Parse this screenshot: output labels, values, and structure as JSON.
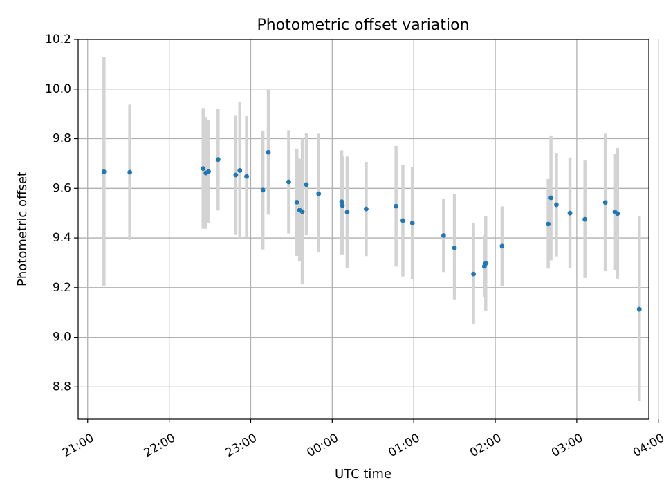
{
  "chart_data": {
    "type": "scatter",
    "title": "Photometric offset variation",
    "xlabel": "UTC time",
    "ylabel": "Photometric offset",
    "grid": true,
    "x_unit": "minutes since 21:00 UTC",
    "xlim": [
      -7,
      413
    ],
    "ylim": [
      8.67,
      10.2
    ],
    "x_ticks": [
      {
        "value": 0,
        "label": "21:00"
      },
      {
        "value": 60,
        "label": "22:00"
      },
      {
        "value": 120,
        "label": "23:00"
      },
      {
        "value": 180,
        "label": "00:00"
      },
      {
        "value": 240,
        "label": "01:00"
      },
      {
        "value": 300,
        "label": "02:00"
      },
      {
        "value": 360,
        "label": "03:00"
      },
      {
        "value": 420,
        "label": "04:00"
      }
    ],
    "y_ticks": [
      {
        "value": 8.8,
        "label": "8.8"
      },
      {
        "value": 9.0,
        "label": "9.0"
      },
      {
        "value": 9.2,
        "label": "9.2"
      },
      {
        "value": 9.4,
        "label": "9.4"
      },
      {
        "value": 9.6,
        "label": "9.6"
      },
      {
        "value": 9.8,
        "label": "9.8"
      },
      {
        "value": 10.0,
        "label": "10.0"
      },
      {
        "value": 10.2,
        "label": "10.2"
      }
    ],
    "marker_color": "#1f77b4",
    "errorbar_color": "#d3d3d3",
    "points": [
      {
        "x": 12,
        "y": 9.667,
        "lo": 9.205,
        "hi": 10.13
      },
      {
        "x": 31,
        "y": 9.665,
        "lo": 9.393,
        "hi": 9.937
      },
      {
        "x": 85,
        "y": 9.68,
        "lo": 9.437,
        "hi": 9.923
      },
      {
        "x": 87,
        "y": 9.662,
        "lo": 9.437,
        "hi": 9.887
      },
      {
        "x": 89,
        "y": 9.668,
        "lo": 9.46,
        "hi": 9.876
      },
      {
        "x": 96,
        "y": 9.716,
        "lo": 9.511,
        "hi": 9.921
      },
      {
        "x": 109,
        "y": 9.654,
        "lo": 9.412,
        "hi": 9.895
      },
      {
        "x": 112,
        "y": 9.672,
        "lo": 9.397,
        "hi": 9.947
      },
      {
        "x": 117,
        "y": 9.648,
        "lo": 9.404,
        "hi": 9.892
      },
      {
        "x": 129,
        "y": 9.593,
        "lo": 9.354,
        "hi": 9.832
      },
      {
        "x": 133,
        "y": 9.745,
        "lo": 9.494,
        "hi": 9.997
      },
      {
        "x": 148,
        "y": 9.626,
        "lo": 9.418,
        "hi": 9.834
      },
      {
        "x": 154,
        "y": 9.544,
        "lo": 9.328,
        "hi": 9.76
      },
      {
        "x": 156,
        "y": 9.512,
        "lo": 9.305,
        "hi": 9.719
      },
      {
        "x": 158,
        "y": 9.506,
        "lo": 9.213,
        "hi": 9.8
      },
      {
        "x": 161,
        "y": 9.615,
        "lo": 9.411,
        "hi": 9.822
      },
      {
        "x": 170,
        "y": 9.578,
        "lo": 9.343,
        "hi": 9.82
      },
      {
        "x": 187,
        "y": 9.546,
        "lo": 9.334,
        "hi": 9.753
      },
      {
        "x": 187.5,
        "y": 9.531,
        "lo": 9.334,
        "hi": 9.728
      },
      {
        "x": 191,
        "y": 9.504,
        "lo": 9.28,
        "hi": 9.728
      },
      {
        "x": 205,
        "y": 9.517,
        "lo": 9.327,
        "hi": 9.707
      },
      {
        "x": 227,
        "y": 9.528,
        "lo": 9.285,
        "hi": 9.771
      },
      {
        "x": 232,
        "y": 9.47,
        "lo": 9.245,
        "hi": 9.694
      },
      {
        "x": 239,
        "y": 9.46,
        "lo": 9.234,
        "hi": 9.687
      },
      {
        "x": 262,
        "y": 9.41,
        "lo": 9.263,
        "hi": 9.557
      },
      {
        "x": 270,
        "y": 9.36,
        "lo": 9.15,
        "hi": 9.576
      },
      {
        "x": 284,
        "y": 9.255,
        "lo": 9.055,
        "hi": 9.459
      },
      {
        "x": 292,
        "y": 9.286,
        "lo": 9.162,
        "hi": 9.41
      },
      {
        "x": 293,
        "y": 9.298,
        "lo": 9.108,
        "hi": 9.488
      },
      {
        "x": 305,
        "y": 9.367,
        "lo": 9.208,
        "hi": 9.527
      },
      {
        "x": 339,
        "y": 9.456,
        "lo": 9.277,
        "hi": 9.637
      },
      {
        "x": 341,
        "y": 9.562,
        "lo": 9.31,
        "hi": 9.813
      },
      {
        "x": 345,
        "y": 9.534,
        "lo": 9.326,
        "hi": 9.743
      },
      {
        "x": 355,
        "y": 9.5,
        "lo": 9.28,
        "hi": 9.724
      },
      {
        "x": 366,
        "y": 9.475,
        "lo": 9.239,
        "hi": 9.712
      },
      {
        "x": 381,
        "y": 9.543,
        "lo": 9.266,
        "hi": 9.82
      },
      {
        "x": 388,
        "y": 9.505,
        "lo": 9.27,
        "hi": 9.74
      },
      {
        "x": 390,
        "y": 9.498,
        "lo": 9.235,
        "hi": 9.762
      },
      {
        "x": 406,
        "y": 9.113,
        "lo": 8.742,
        "hi": 9.487
      }
    ]
  }
}
